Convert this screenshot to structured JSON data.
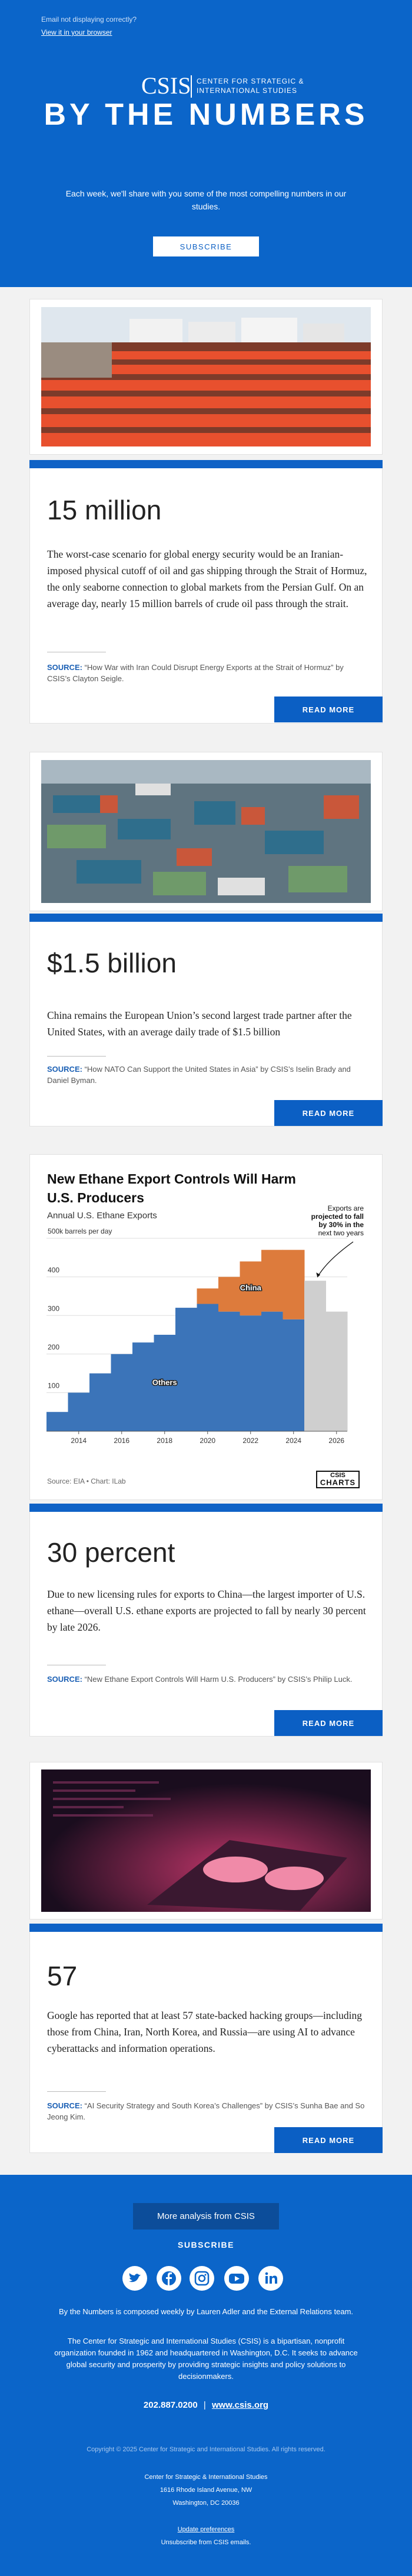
{
  "header": {
    "notice": "Email not displaying correctly?",
    "browser_link": "View it in your browser",
    "logo": "CSIS",
    "logo_sub": [
      "CENTER FOR STRATEGIC &",
      "INTERNATIONAL STUDIES"
    ],
    "title": "BY THE NUMBERS",
    "intro": "Each week, we'll share with you some of the most compelling numbers in our studies.",
    "subscribe": "SUBSCRIBE"
  },
  "sections": [
    {
      "stat": "15 million",
      "text": "The worst-case scenario for global energy security would be an Iranian-imposed physical cutoff of oil and gas shipping through the Strait of Hormuz, the only seaborne connection to global markets from the Persian Gulf. On an average day, nearly 15 million barrels of crude oil pass through the strait.",
      "source_label": "SOURCE:",
      "source": "“How War with Iran Could Disrupt Energy Exports at the Strait of Hormuz” by CSIS’s Clayton Seigle.",
      "button": "READ MORE"
    },
    {
      "stat": "$1.5 billion",
      "text": "China remains the European Union’s second largest trade partner after the United States, with an average daily trade of $1.5 billion",
      "source_label": "SOURCE:",
      "source": "“How NATO Can Support the United States in Asia” by CSIS’s Iselin Brady and Daniel Byman.",
      "button": "READ MORE"
    },
    {
      "stat": "30 percent",
      "text": "Due to new licensing rules for exports to China—the largest importer of U.S. ethane—overall U.S. ethane exports are projected to fall by nearly 30 percent by late 2026.",
      "source_label": "SOURCE:",
      "source": "“New Ethane Export Controls Will Harm U.S. Producers” by CSIS’s Philip Luck.",
      "button": "READ MORE"
    },
    {
      "stat": "57",
      "text": "Google has reported that at least 57 state-backed hacking groups—including those from China, Iran, North Korea, and Russia—are using AI to advance cyberattacks and information operations.",
      "source_label": "SOURCE:",
      "source": "“AI Security Strategy and South Korea’s Challenges” by CSIS’s Sunha Bae and So Jeong Kim.",
      "button": "READ MORE"
    }
  ],
  "chart_data": {
    "type": "stacked_step_area",
    "title": "New Ethane Export Controls Will Harm U.S. Producers",
    "subtitle": "Annual U.S. Ethane Exports",
    "x": [
      2013,
      2014,
      2015,
      2016,
      2017,
      2018,
      2019,
      2020,
      2021,
      2022,
      2023,
      2024,
      2025,
      2026
    ],
    "series": [
      {
        "name": "Others",
        "color": "#3b74b9",
        "values": [
          50,
          100,
          150,
          200,
          230,
          250,
          320,
          330,
          310,
          300,
          310,
          290,
          null,
          null
        ]
      },
      {
        "name": "China",
        "color": "#dd7b3c",
        "values": [
          0,
          0,
          0,
          0,
          0,
          0,
          0,
          40,
          90,
          140,
          160,
          180,
          null,
          null
        ]
      }
    ],
    "projected": {
      "color": "#cfcfcf",
      "values": [
        null,
        null,
        null,
        null,
        null,
        null,
        null,
        null,
        null,
        null,
        null,
        null,
        390,
        310
      ]
    },
    "xlim": [
      2012.5,
      2026.5
    ],
    "ylim": [
      0,
      500
    ],
    "xticks": [
      2014,
      2016,
      2018,
      2020,
      2022,
      2024,
      2026
    ],
    "yticks": [
      100,
      200,
      300,
      400,
      {
        "value": 500,
        "label": "500k barrels per day"
      }
    ],
    "grid": true,
    "annotation": [
      "Exports are",
      "projected to fall",
      "by 30% in the",
      "next two years"
    ],
    "source": "Source: EIA • Chart: ILab",
    "logo": [
      "CSIS",
      "CHARTS"
    ]
  },
  "footer": {
    "button": "More analysis from CSIS",
    "subscribe": "SUBSCRIBE",
    "credit": "By the Numbers is composed weekly by Lauren Adler and the External Relations team.",
    "about": "The Center for Strategic and International Studies (CSIS) is a bipartisan, nonprofit organization founded in 1962 and headquartered in Washington, D.C. It seeks to advance global security and prosperity by providing strategic insights and policy solutions to decisionmakers.",
    "phone": "202.887.0200",
    "separator": "|",
    "site": "www.csis.org",
    "copyright": "Copyright © 2025 Center for Strategic and International Studies. All rights reserved.",
    "address": [
      "Center for Strategic & International Studies",
      "1616 Rhode Island Avenue, NW",
      "Washington, DC 20036"
    ],
    "preferences": "Update preferences",
    "unsubscribe": "Unsubscribe from CSIS emails."
  }
}
